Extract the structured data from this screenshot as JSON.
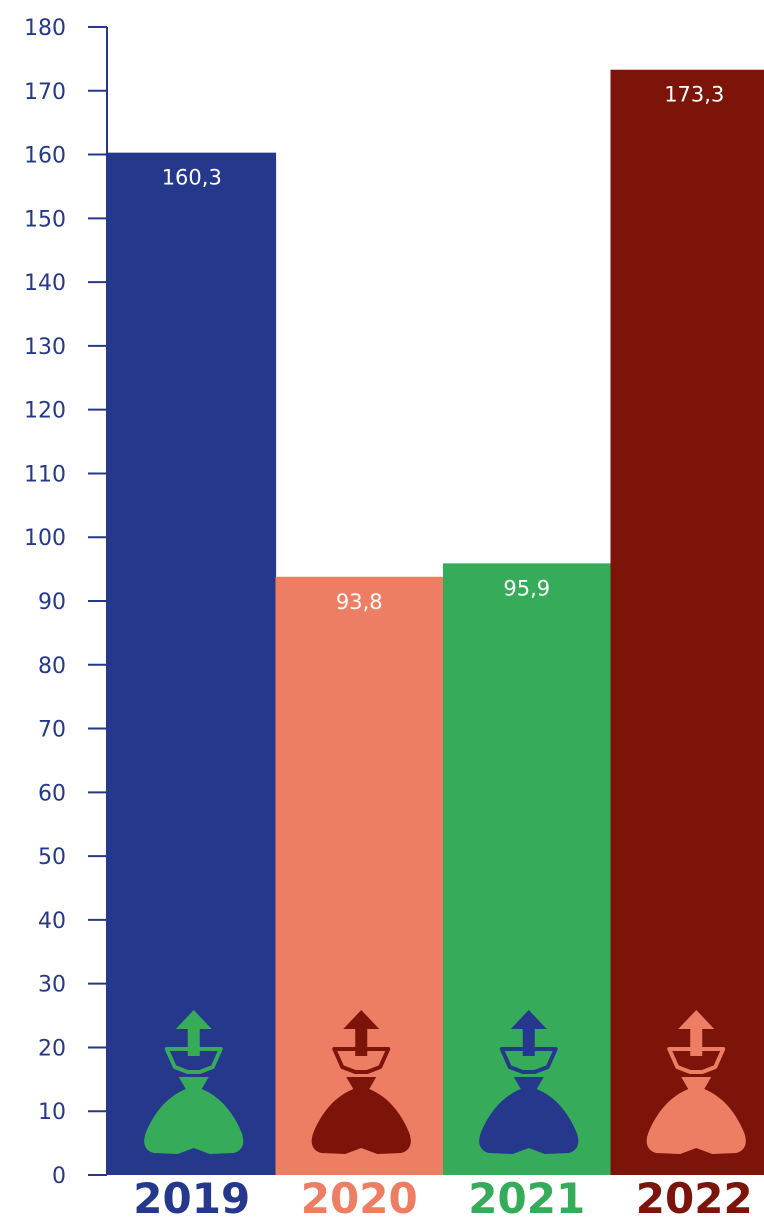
{
  "chart_data": {
    "type": "bar",
    "title": "",
    "xlabel": "",
    "ylabel": "",
    "categories": [
      "2019",
      "2020",
      "2021",
      "2022"
    ],
    "values": [
      160.3,
      93.8,
      95.9,
      173.3
    ],
    "value_labels": [
      "160,3",
      "93,8",
      "95,9",
      "173,3"
    ],
    "ylim": [
      0,
      180
    ],
    "y_ticks": [
      0,
      10,
      20,
      30,
      40,
      50,
      60,
      70,
      80,
      90,
      100,
      110,
      120,
      130,
      140,
      150,
      160,
      170,
      180
    ],
    "grid": false,
    "legend": "none",
    "colors": {
      "axis": "#26388c",
      "bars": [
        "#26388c",
        "#ee7e63",
        "#36ab5a",
        "#7c1409"
      ],
      "category_labels": [
        "#26388c",
        "#ee7e63",
        "#36ab5a",
        "#7c1409"
      ],
      "icons": [
        "#36ab5a",
        "#7c1409",
        "#26388c",
        "#ee7e63"
      ]
    },
    "icons": [
      "money-bag-up-arrow-icon",
      "money-bag-up-arrow-icon",
      "money-bag-up-arrow-icon",
      "money-bag-up-arrow-icon"
    ]
  }
}
